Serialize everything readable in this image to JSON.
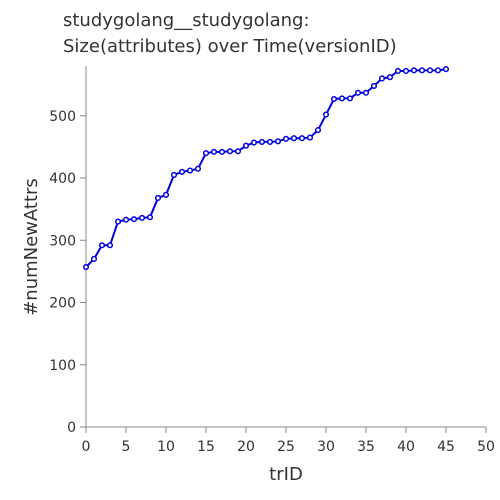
{
  "chart_data": {
    "type": "line",
    "title_lines": [
      "studygolang__studygolang:",
      "Size(attributes) over Time(versionID)"
    ],
    "xlabel": "trID",
    "ylabel": "#numNewAttrs",
    "xlim": [
      0,
      50
    ],
    "ylim": [
      0,
      580
    ],
    "xticks": [
      0,
      5,
      10,
      15,
      20,
      25,
      30,
      35,
      40,
      45,
      50
    ],
    "yticks": [
      0,
      100,
      200,
      300,
      400,
      500
    ],
    "grid": false,
    "series": [
      {
        "color": "#0000dd",
        "x": [
          0,
          1,
          2,
          3,
          4,
          5,
          6,
          7,
          8,
          9,
          10,
          11,
          12,
          13,
          14,
          15,
          16,
          17,
          18,
          19,
          20,
          21,
          22,
          23,
          24,
          25,
          26,
          27,
          28,
          29,
          30,
          31,
          32,
          33,
          34,
          35,
          36,
          37,
          38,
          39,
          40,
          41,
          42,
          43,
          44,
          45
        ],
        "y": [
          257,
          270,
          292,
          292,
          330,
          333,
          334,
          336,
          337,
          368,
          373,
          405,
          410,
          412,
          415,
          440,
          442,
          442,
          443,
          443,
          452,
          457,
          458,
          458,
          459,
          463,
          464,
          464,
          465,
          477,
          502,
          527,
          528,
          528,
          537,
          537,
          548,
          560,
          562,
          572,
          572,
          573,
          573,
          573,
          573,
          575
        ]
      }
    ]
  }
}
